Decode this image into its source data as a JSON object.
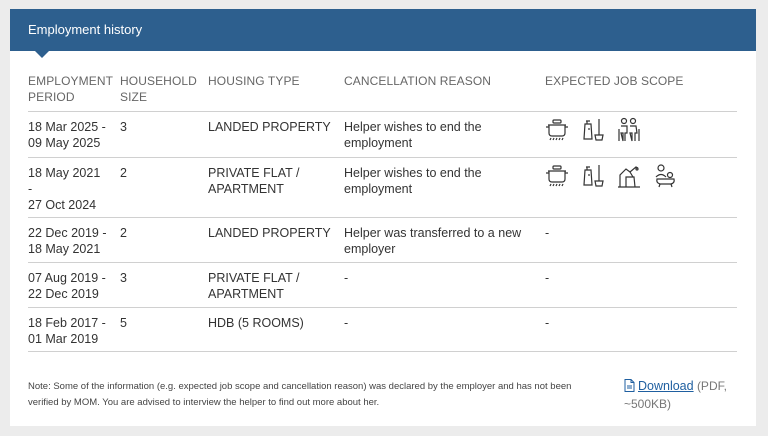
{
  "header": {
    "title": "Employment history"
  },
  "columns": {
    "period": "EMPLOYMENT PERIOD",
    "household": "HOUSEHOLD SIZE",
    "housing": "HOUSING TYPE",
    "reason": "CANCELLATION REASON",
    "scope": "EXPECTED JOB SCOPE"
  },
  "rows": [
    {
      "period_line1": "18 Mar 2025 -",
      "period_line2": "09 May 2025",
      "household": "3",
      "housing": "LANDED PROPERTY",
      "reason": "Helper wishes to end the employment",
      "scope_icons": [
        "cooking-icon",
        "cleaning-icon",
        "elderly-care-icon"
      ],
      "scope_text": ""
    },
    {
      "period_line1": "18 May 2021",
      "period_line2": "-",
      "period_line3": "27 Oct 2024",
      "household": "2",
      "housing": "PRIVATE FLAT / APARTMENT",
      "reason": "Helper wishes to end the employment",
      "scope_icons": [
        "cooking-icon",
        "cleaning-icon",
        "pet-care-icon",
        "child-care-icon"
      ],
      "scope_text": ""
    },
    {
      "period_line1": "22 Dec 2019 -",
      "period_line2": "18 May 2021",
      "household": "2",
      "housing": "LANDED PROPERTY",
      "reason": "Helper was transferred to a new employer",
      "scope_icons": [],
      "scope_text": "-"
    },
    {
      "period_line1": "07 Aug 2019 -",
      "period_line2": "22 Dec 2019",
      "household": "3",
      "housing": "PRIVATE FLAT / APARTMENT",
      "reason": "-",
      "scope_icons": [],
      "scope_text": "-"
    },
    {
      "period_line1": "18 Feb 2017 -",
      "period_line2": "01 Mar 2019",
      "household": "5",
      "housing": "HDB (5 ROOMS)",
      "reason": "-",
      "scope_icons": [],
      "scope_text": "-"
    }
  ],
  "footer": {
    "note": "Note: Some of the information (e.g. expected job scope and cancellation reason) was declared by the employer and has not been verified by MOM. You are advised to interview the helper to find out more about her.",
    "download_label": "Download",
    "download_meta": "(PDF, ~500KB)"
  }
}
